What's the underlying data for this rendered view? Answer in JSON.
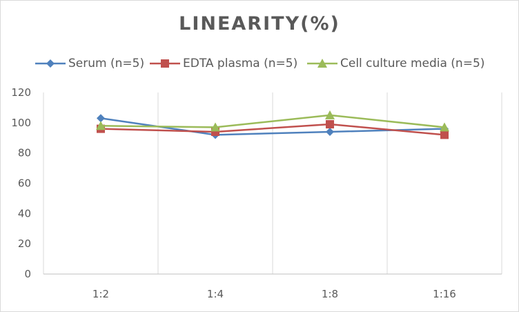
{
  "chart_data": {
    "type": "line",
    "title": "LINEARITY(%)",
    "xlabel": "",
    "ylabel": "",
    "categories": [
      "1:2",
      "1:4",
      "1:8",
      "1:16"
    ],
    "ylim": [
      0,
      120
    ],
    "yticks": [
      0,
      20,
      40,
      60,
      80,
      100,
      120
    ],
    "grid": "vertical category dividers",
    "legend": "top",
    "series": [
      {
        "name": "Serum (n=5)",
        "values": [
          103,
          92,
          94,
          96
        ],
        "color": "#4f81bd",
        "marker": "diamond"
      },
      {
        "name": "EDTA plasma (n=5)",
        "values": [
          96,
          94,
          99,
          92
        ],
        "color": "#c0504d",
        "marker": "square"
      },
      {
        "name": "Cell culture media (n=5)",
        "values": [
          98,
          97,
          105,
          97
        ],
        "color": "#9bbb59",
        "marker": "triangle"
      }
    ]
  }
}
